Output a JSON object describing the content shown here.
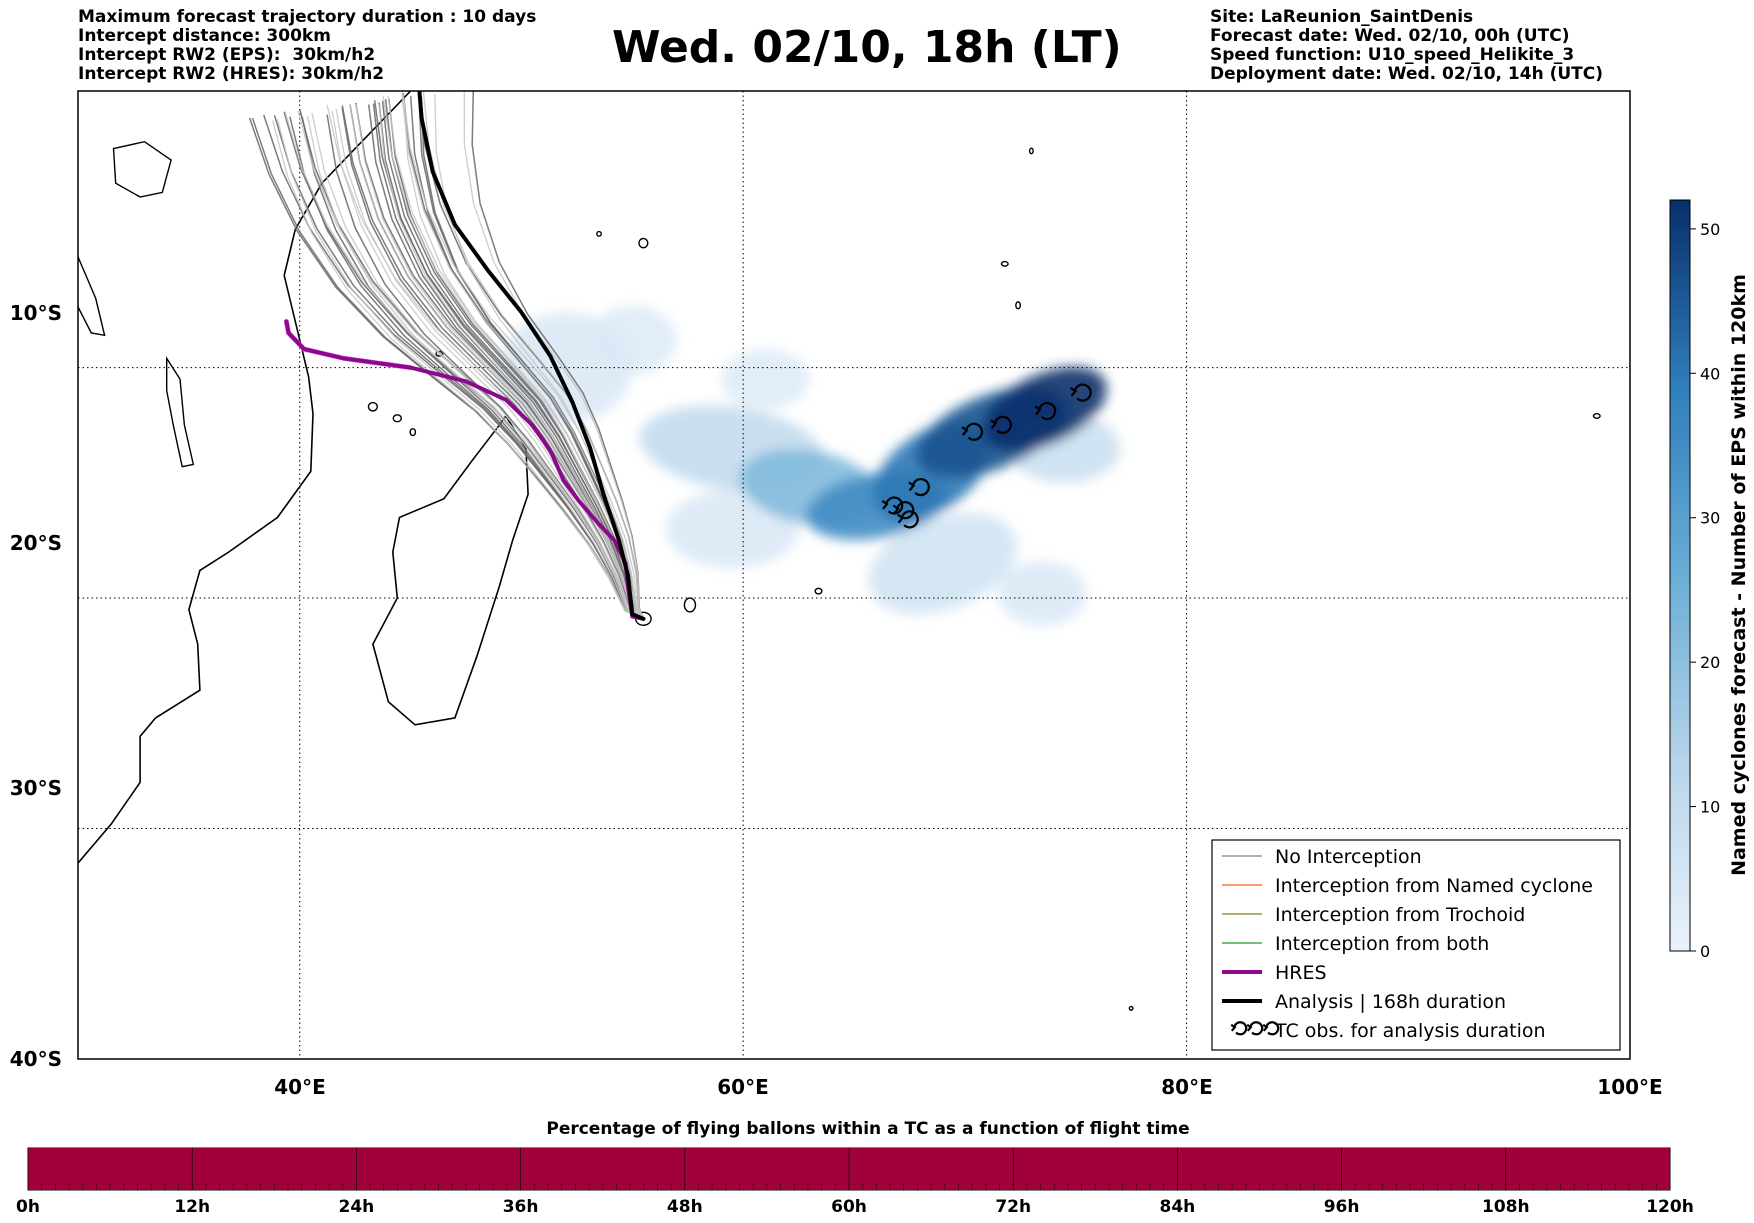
{
  "header": {
    "title": "Wed. 02/10, 18h (LT)",
    "left_lines": [
      "Maximum forecast trajectory duration : 10 days",
      "Intercept distance: 300km",
      "Intercept RW2 (EPS):  30km/h2",
      "Intercept RW2 (HRES): 30km/h2"
    ],
    "right_lines": [
      "Site: LaReunion_SaintDenis",
      "Forecast date: Wed. 02/10, 00h (UTC)",
      "Speed function: U10_speed_Helikite_3",
      "Deployment date: Wed. 02/10, 14h (UTC)"
    ]
  },
  "map": {
    "lon_range": [
      30,
      100
    ],
    "lat_range": [
      -40,
      2
    ],
    "lon_ticks": [
      "40°E",
      "60°E",
      "80°E",
      "100°E"
    ],
    "lat_ticks": [
      "10°S",
      "20°S",
      "30°S",
      "40°S"
    ],
    "release_site": {
      "lon": 55.5,
      "lat": -20.9
    },
    "hres_track": [
      [
        55.5,
        -20.9
      ],
      [
        55.0,
        -20.8
      ],
      [
        54.8,
        -19.5
      ],
      [
        54.7,
        -18.5
      ],
      [
        54.2,
        -17.5
      ],
      [
        53.5,
        -16.8
      ],
      [
        52.6,
        -15.8
      ],
      [
        51.9,
        -14.9
      ],
      [
        51.3,
        -13.6
      ],
      [
        50.5,
        -12.5
      ],
      [
        49.3,
        -11.4
      ],
      [
        47.5,
        -10.6
      ],
      [
        45.0,
        -10.0
      ],
      [
        42.0,
        -9.6
      ],
      [
        40.2,
        -9.2
      ],
      [
        39.5,
        -8.5
      ],
      [
        39.4,
        -8.0
      ]
    ],
    "analysis_track": [
      [
        55.5,
        -20.9
      ],
      [
        55.0,
        -20.7
      ],
      [
        54.8,
        -19.0
      ],
      [
        54.4,
        -17.5
      ],
      [
        53.7,
        -15.5
      ],
      [
        53.1,
        -13.5
      ],
      [
        52.3,
        -11.5
      ],
      [
        51.3,
        -9.5
      ],
      [
        50.0,
        -7.6
      ],
      [
        48.5,
        -5.8
      ],
      [
        47.0,
        -3.8
      ],
      [
        46.0,
        -1.5
      ],
      [
        45.5,
        0.8
      ],
      [
        45.4,
        2.0
      ]
    ],
    "tc_obs": [
      [
        74.7,
        -11.3
      ],
      [
        73.1,
        -12.1
      ],
      [
        71.1,
        -12.7
      ],
      [
        69.8,
        -13.0
      ],
      [
        67.4,
        -15.4
      ],
      [
        66.2,
        -16.2
      ],
      [
        66.7,
        -16.4
      ],
      [
        66.9,
        -16.8
      ]
    ],
    "density_blobs": [
      {
        "lon": 73.6,
        "lat": -11.8,
        "rx": 3.0,
        "ry": 1.5,
        "rot": -25,
        "value": 52
      },
      {
        "lon": 71.2,
        "lat": -12.8,
        "rx": 3.6,
        "ry": 1.6,
        "rot": -22,
        "value": 46
      },
      {
        "lon": 68.5,
        "lat": -14.5,
        "rx": 3.0,
        "ry": 1.7,
        "rot": -35,
        "value": 40
      },
      {
        "lon": 66.0,
        "lat": -16.0,
        "rx": 3.2,
        "ry": 1.4,
        "rot": -10,
        "value": 35
      },
      {
        "lon": 63.0,
        "lat": -15.2,
        "rx": 3.2,
        "ry": 1.6,
        "rot": 10,
        "value": 22
      },
      {
        "lon": 59.5,
        "lat": -13.5,
        "rx": 4.2,
        "ry": 1.8,
        "rot": 8,
        "value": 10
      },
      {
        "lon": 69.0,
        "lat": -18.5,
        "rx": 3.5,
        "ry": 2.0,
        "rot": -20,
        "value": 6
      },
      {
        "lon": 73.5,
        "lat": -19.8,
        "rx": 2.0,
        "ry": 1.4,
        "rot": 0,
        "value": 4
      },
      {
        "lon": 74.5,
        "lat": -13.5,
        "rx": 2.5,
        "ry": 1.5,
        "rot": 0,
        "value": 8
      },
      {
        "lon": 52.0,
        "lat": -10.0,
        "rx": 3.0,
        "ry": 2.4,
        "rot": 0,
        "value": 4
      },
      {
        "lon": 55.0,
        "lat": -8.8,
        "rx": 2.0,
        "ry": 1.5,
        "rot": 0,
        "value": 3
      },
      {
        "lon": 61.0,
        "lat": -10.5,
        "rx": 2.0,
        "ry": 1.3,
        "rot": 0,
        "value": 3
      },
      {
        "lon": 59.5,
        "lat": -17.0,
        "rx": 3.0,
        "ry": 1.7,
        "rot": 0,
        "value": 4
      }
    ],
    "coast_africa": [
      [
        30,
        -31.5
      ],
      [
        31.5,
        -29.8
      ],
      [
        32.8,
        -28.0
      ],
      [
        32.8,
        -26.0
      ],
      [
        33.5,
        -25.2
      ],
      [
        35.5,
        -24.0
      ],
      [
        35.4,
        -22.0
      ],
      [
        35.0,
        -20.5
      ],
      [
        35.5,
        -18.8
      ],
      [
        36.8,
        -18.0
      ],
      [
        39.0,
        -16.5
      ],
      [
        40.5,
        -14.5
      ],
      [
        40.6,
        -12.0
      ],
      [
        40.4,
        -10.4
      ],
      [
        39.8,
        -8.0
      ],
      [
        39.3,
        -6.0
      ],
      [
        39.8,
        -4.0
      ],
      [
        41.0,
        -2.0
      ],
      [
        42.5,
        -0.5
      ],
      [
        44.0,
        1.0
      ],
      [
        45.0,
        2.0
      ]
    ],
    "coast_madagascar": [
      [
        49.3,
        -12.1
      ],
      [
        50.2,
        -13.5
      ],
      [
        50.3,
        -15.5
      ],
      [
        49.6,
        -17.5
      ],
      [
        49.0,
        -19.5
      ],
      [
        48.0,
        -22.5
      ],
      [
        47.0,
        -25.2
      ],
      [
        45.2,
        -25.5
      ],
      [
        44.0,
        -24.5
      ],
      [
        43.3,
        -22.0
      ],
      [
        44.4,
        -20.0
      ],
      [
        44.2,
        -18.0
      ],
      [
        44.5,
        -16.5
      ],
      [
        46.5,
        -15.7
      ],
      [
        47.8,
        -14.0
      ],
      [
        49.0,
        -12.5
      ],
      [
        49.3,
        -12.1
      ]
    ],
    "lake_victoria": [
      [
        31.6,
        -0.5
      ],
      [
        33.0,
        -0.2
      ],
      [
        34.2,
        -1.0
      ],
      [
        33.8,
        -2.4
      ],
      [
        32.8,
        -2.6
      ],
      [
        31.7,
        -2.0
      ],
      [
        31.6,
        -0.5
      ]
    ],
    "lake_tanganyika": [
      [
        29.5,
        -3.5
      ],
      [
        30.0,
        -5.2
      ],
      [
        30.8,
        -7.0
      ],
      [
        31.2,
        -8.6
      ],
      [
        30.6,
        -8.5
      ],
      [
        29.7,
        -6.8
      ],
      [
        29.2,
        -4.8
      ],
      [
        29.5,
        -3.5
      ]
    ],
    "lake_malawi": [
      [
        34.0,
        -9.6
      ],
      [
        34.6,
        -10.5
      ],
      [
        34.8,
        -12.5
      ],
      [
        35.2,
        -14.2
      ],
      [
        34.7,
        -14.3
      ],
      [
        34.3,
        -12.5
      ],
      [
        34.0,
        -11.0
      ],
      [
        34.0,
        -9.6
      ]
    ],
    "islands": [
      [
        55.5,
        -20.9,
        0.35,
        0.28
      ],
      [
        57.6,
        -20.3,
        0.25,
        0.3
      ],
      [
        63.4,
        -19.7,
        0.15,
        0.12
      ],
      [
        43.3,
        -11.7,
        0.2,
        0.18
      ],
      [
        44.4,
        -12.2,
        0.18,
        0.15
      ],
      [
        45.1,
        -12.8,
        0.12,
        0.15
      ],
      [
        55.5,
        -4.6,
        0.2,
        0.2
      ],
      [
        72.4,
        -7.3,
        0.1,
        0.15
      ],
      [
        71.8,
        -5.5,
        0.15,
        0.1
      ],
      [
        73.0,
        -0.6,
        0.08,
        0.12
      ],
      [
        98.5,
        -12.1,
        0.15,
        0.1
      ],
      [
        77.5,
        -37.8,
        0.08,
        0.08
      ],
      [
        46.3,
        -9.4,
        0.15,
        0.1
      ],
      [
        53.5,
        -4.2,
        0.1,
        0.1
      ]
    ],
    "colorbar": {
      "label": "Named cyclones forecast - Number of EPS within 120km",
      "min": 0,
      "max": 52,
      "ticks": [
        0,
        10,
        20,
        30,
        40,
        50
      ]
    }
  },
  "legend": {
    "items": [
      {
        "label": "No Interception",
        "color": "#808080",
        "width": 1.2
      },
      {
        "label": "Interception from Named cyclone",
        "color": "#ff5a14",
        "width": 1.2
      },
      {
        "label": "Interception from Trochoid",
        "color": "#8c7d1e",
        "width": 1.2
      },
      {
        "label": "Interception from both",
        "color": "#1e9628",
        "width": 1.2
      },
      {
        "label": "HRES",
        "color": "#8b0a8b",
        "width": 4
      },
      {
        "label": "Analysis | 168h duration",
        "color": "#000000",
        "width": 4
      },
      {
        "label": "TC obs. for analysis duration",
        "color": "",
        "width": 0
      }
    ]
  },
  "bottom_bar": {
    "title": "Percentage of flying ballons within a TC as a function of flight time",
    "fill_color": "#a0003c",
    "fill_fraction": 1.0,
    "ticks": [
      "0h",
      "12h",
      "24h",
      "36h",
      "48h",
      "60h",
      "72h",
      "84h",
      "96h",
      "108h",
      "120h"
    ]
  }
}
